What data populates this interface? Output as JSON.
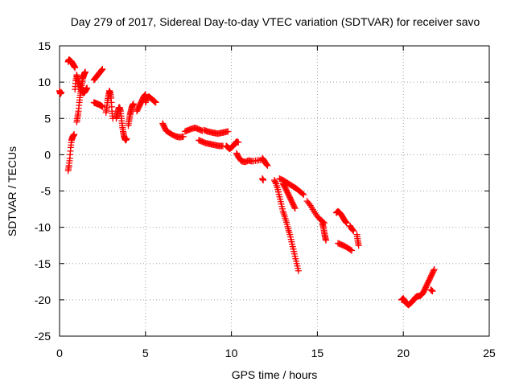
{
  "chart_data": {
    "type": "scatter",
    "title": "Day 279 of 2017, Sidereal Day-to-day VTEC variation (SDTVAR) for receiver savo",
    "xlabel": "GPS time / hours",
    "ylabel": "SDTVAR / TECUs",
    "xlim": [
      0,
      25
    ],
    "ylim": [
      -25,
      15
    ],
    "xticks": [
      "0",
      "5",
      "10",
      "15",
      "20",
      "25"
    ],
    "yticks": [
      "15",
      "10",
      "5",
      "0",
      "-5",
      "-10",
      "-15",
      "-20",
      "-25"
    ],
    "grid": true,
    "marker": "+",
    "series_color": "#ff0000",
    "segments": [
      {
        "x": [
          0.0,
          0.05,
          0.1
        ],
        "y": [
          8.8,
          8.4,
          8.6
        ]
      },
      {
        "x": [
          0.5,
          0.55,
          0.6,
          0.65,
          0.7,
          0.75,
          0.8,
          0.85
        ],
        "y": [
          -2.2,
          -1.5,
          -0.5,
          1.0,
          2.0,
          2.4,
          2.6,
          2.8
        ]
      },
      {
        "x": [
          0.5,
          0.55,
          0.6,
          0.65,
          0.7,
          0.75,
          0.8,
          0.85,
          0.9
        ],
        "y": [
          12.8,
          13.1,
          13.0,
          12.9,
          12.8,
          12.6,
          12.4,
          12.2,
          12.0
        ]
      },
      {
        "x": [
          0.9,
          0.95,
          1.0,
          1.05,
          1.1
        ],
        "y": [
          9.0,
          10.2,
          11.0,
          10.5,
          9.8
        ]
      },
      {
        "x": [
          1.0,
          1.05,
          1.1,
          1.15,
          1.2,
          1.25,
          1.3,
          1.35,
          1.4,
          1.45,
          1.5
        ],
        "y": [
          4.5,
          5.2,
          6.0,
          7.2,
          8.2,
          9.0,
          9.8,
          10.5,
          10.9,
          11.2,
          11.4
        ]
      },
      {
        "x": [
          1.15,
          1.2,
          1.25,
          1.3,
          1.35,
          1.4,
          1.45,
          1.5,
          1.55,
          1.6
        ],
        "y": [
          10.0,
          9.5,
          9.0,
          8.8,
          8.6,
          8.5,
          8.6,
          8.8,
          9.0,
          9.2
        ]
      },
      {
        "x": [
          2.0,
          2.1,
          2.2,
          2.3,
          2.4,
          2.5
        ],
        "y": [
          7.2,
          7.1,
          7.0,
          6.9,
          6.8,
          6.6
        ]
      },
      {
        "x": [
          2.0,
          2.1,
          2.2,
          2.3,
          2.4,
          2.5
        ],
        "y": [
          10.3,
          10.6,
          10.9,
          11.2,
          11.5,
          11.8
        ]
      },
      {
        "x": [
          2.7,
          2.75,
          2.8,
          2.85,
          2.9,
          2.95,
          3.0,
          3.05,
          3.1
        ],
        "y": [
          5.8,
          6.5,
          7.5,
          8.2,
          8.8,
          8.5,
          7.8,
          6.0,
          5.0
        ]
      },
      {
        "x": [
          3.3,
          3.35,
          3.4,
          3.45,
          3.5,
          3.55,
          3.6,
          3.65,
          3.7,
          3.75,
          3.8,
          3.85,
          3.9
        ],
        "y": [
          5.0,
          5.5,
          6.0,
          6.5,
          6.5,
          6.0,
          5.0,
          4.0,
          3.2,
          2.6,
          2.2,
          2.0,
          2.2
        ]
      },
      {
        "x": [
          4.0,
          4.05,
          4.1,
          4.15,
          4.2,
          4.25,
          4.3
        ],
        "y": [
          4.0,
          4.8,
          5.5,
          6.0,
          6.5,
          6.8,
          7.0
        ]
      },
      {
        "x": [
          4.5,
          4.6,
          4.7,
          4.8,
          4.9,
          5.0
        ],
        "y": [
          6.0,
          6.5,
          7.0,
          7.5,
          8.0,
          8.3
        ]
      },
      {
        "x": [
          5.0,
          5.1,
          5.2,
          5.3,
          5.4,
          5.5,
          5.6
        ],
        "y": [
          7.2,
          7.8,
          8.0,
          7.8,
          7.6,
          7.4,
          7.2
        ]
      },
      {
        "x": [
          6.0,
          6.1,
          6.2,
          6.4,
          6.6,
          6.8,
          7.0,
          7.2
        ],
        "y": [
          4.3,
          3.8,
          3.3,
          3.0,
          2.7,
          2.5,
          2.4,
          2.5
        ]
      },
      {
        "x": [
          7.3,
          7.5,
          7.7,
          7.9,
          8.1,
          8.3
        ],
        "y": [
          3.2,
          3.4,
          3.6,
          3.7,
          3.5,
          3.3
        ]
      },
      {
        "x": [
          8.4,
          8.6,
          8.8,
          9.0,
          9.2,
          9.4,
          9.6,
          9.8
        ],
        "y": [
          3.4,
          3.2,
          3.1,
          3.0,
          2.9,
          3.0,
          3.1,
          3.2
        ]
      },
      {
        "x": [
          8.1,
          8.3,
          8.5,
          8.7,
          8.9,
          9.1,
          9.3,
          9.5
        ],
        "y": [
          2.0,
          1.8,
          1.6,
          1.5,
          1.4,
          1.3,
          1.2,
          1.2
        ]
      },
      {
        "x": [
          9.7,
          9.8,
          9.9,
          10.0,
          10.1,
          10.2,
          10.3,
          10.4
        ],
        "y": [
          1.2,
          1.0,
          0.8,
          1.0,
          1.2,
          1.5,
          1.8,
          1.7
        ]
      },
      {
        "x": [
          10.3,
          10.4,
          10.5,
          10.6,
          10.8,
          11.0,
          11.2,
          11.5,
          11.8
        ],
        "y": [
          0.2,
          -0.3,
          -0.6,
          -0.9,
          -1.0,
          -0.8,
          -0.9,
          -0.8,
          -0.7
        ]
      },
      {
        "x": [
          11.8,
          11.9,
          12.0,
          12.1
        ],
        "y": [
          -0.5,
          -0.8,
          -1.2,
          -1.5
        ]
      },
      {
        "x": [
          11.8,
          11.85
        ],
        "y": [
          -3.3,
          -3.5
        ]
      },
      {
        "x": [
          12.5,
          12.6,
          12.7,
          12.8,
          12.9,
          13.0,
          13.1,
          13.2,
          13.3,
          13.4,
          13.5,
          13.6,
          13.7,
          13.8,
          13.9
        ],
        "y": [
          -3.5,
          -4.0,
          -4.8,
          -5.8,
          -6.8,
          -7.8,
          -8.5,
          -9.3,
          -10.2,
          -11.0,
          -12.0,
          -13.0,
          -14.0,
          -15.0,
          -16.0
        ]
      },
      {
        "x": [
          12.8,
          13.0,
          13.2,
          13.4,
          13.6,
          13.8,
          14.0,
          14.2
        ],
        "y": [
          -3.3,
          -3.5,
          -3.8,
          -4.1,
          -4.4,
          -4.7,
          -5.1,
          -5.5
        ]
      },
      {
        "x": [
          13.0,
          13.1,
          13.2,
          13.3,
          13.4,
          13.5,
          13.6,
          13.7
        ],
        "y": [
          -4.0,
          -4.4,
          -4.9,
          -5.4,
          -5.9,
          -6.4,
          -6.9,
          -7.4
        ]
      },
      {
        "x": [
          14.4,
          14.6,
          14.8,
          15.0,
          15.2,
          15.4
        ],
        "y": [
          -6.4,
          -7.0,
          -7.8,
          -8.5,
          -9.0,
          -9.4
        ]
      },
      {
        "x": [
          15.3,
          15.35,
          15.4,
          15.45,
          15.5
        ],
        "y": [
          -9.5,
          -10.0,
          -10.7,
          -11.3,
          -11.8
        ]
      },
      {
        "x": [
          16.1,
          16.2,
          16.3,
          16.4,
          16.5,
          16.6,
          16.7
        ],
        "y": [
          -8.0,
          -7.8,
          -8.0,
          -8.3,
          -8.7,
          -9.1,
          -9.4
        ]
      },
      {
        "x": [
          16.2,
          16.4,
          16.6,
          16.8,
          17.0
        ],
        "y": [
          -12.2,
          -12.4,
          -12.6,
          -12.9,
          -13.2
        ]
      },
      {
        "x": [
          16.9,
          17.0,
          17.1
        ],
        "y": [
          -9.8,
          -10.2,
          -10.5
        ]
      },
      {
        "x": [
          17.3,
          17.35,
          17.4
        ],
        "y": [
          -11.0,
          -11.8,
          -12.5
        ]
      },
      {
        "x": [
          19.9,
          20.0,
          20.1
        ],
        "y": [
          -20.0,
          -19.8,
          -20.2
        ]
      },
      {
        "x": [
          20.1,
          20.2,
          20.3,
          20.4,
          20.5,
          20.6,
          20.7,
          20.8,
          20.9,
          21.0,
          21.1,
          21.2,
          21.3,
          21.4,
          21.5,
          21.6,
          21.7,
          21.8
        ],
        "y": [
          -20.3,
          -20.5,
          -20.7,
          -20.5,
          -20.3,
          -20.0,
          -19.7,
          -19.5,
          -19.5,
          -19.4,
          -19.2,
          -18.8,
          -18.3,
          -17.8,
          -17.3,
          -16.8,
          -16.3,
          -15.8
        ]
      },
      {
        "x": [
          21.6,
          21.7
        ],
        "y": [
          -18.6,
          -18.8
        ]
      }
    ]
  }
}
